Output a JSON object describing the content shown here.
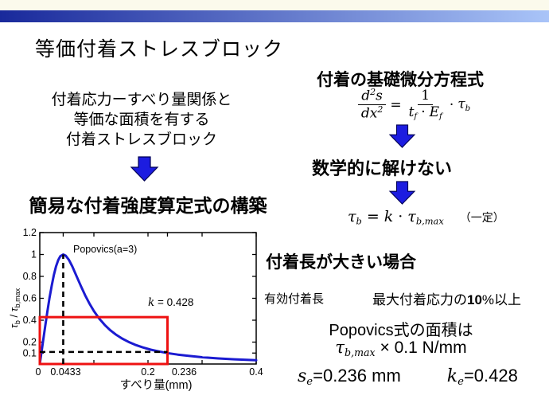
{
  "colors": {
    "strip": "#fbfaec",
    "bar_left": "#19299b",
    "bar_right": "#a9c4f8",
    "arrow_fill": "#1c1ce0",
    "arrow_outline": "#000055",
    "curve": "#1b1bd1",
    "stress_block": "#ee1111"
  },
  "slide": {
    "title": "等価付着ストレスブロック",
    "left": {
      "block_lines": [
        "付着応力ーすべり量関係と",
        "等価な面積を有する",
        "付着ストレスブロック"
      ],
      "goal": "簡易な付着強度算定式の構築"
    },
    "right": {
      "heading_diffeq": "付着の基礎微分方程式",
      "eq_diff": {
        "lhs_num_d": "d",
        "lhs_num_sup": "2",
        "lhs_num_var": "s",
        "lhs_den": "dx",
        "lhs_den_sup": "2",
        "equals": "=",
        "rhs_num": "1",
        "rhs_den_t": "t",
        "rhs_den_t_sub": "f",
        "rhs_den_dot": "·",
        "rhs_den_E": "E",
        "rhs_den_E_sub": "f",
        "mult": "·",
        "tau": "τ",
        "tau_sub": "b"
      },
      "unsolvable": "数学的に解けない",
      "eq_const": {
        "tau": "τ",
        "tau_sub": "b",
        "equals": "=",
        "k": "k",
        "dot": "·",
        "tau2": "τ",
        "tau2_sub": "b,max",
        "note": "（一定）"
      },
      "long_bond": "付着長が大きい場合",
      "effective_length": "有効付着長",
      "max_stress_pre": "最大付着応力の",
      "max_stress_num": "10",
      "max_stress_post": "%以上",
      "area_line": "Popovics式の面積は",
      "area_eq": {
        "tau": "τ",
        "sub": "b,max",
        "rest": " × 0.1 N/mm"
      },
      "se": {
        "base": "s",
        "sub": "e",
        "value": "=0.236 mm"
      },
      "ke": {
        "base": "k",
        "sub": "e",
        "value": "=0.428"
      }
    }
  },
  "chart_data": {
    "type": "line",
    "xlabel": "すべり量(mm)",
    "ylabel_parts": [
      {
        "t": "τ",
        "italic": true
      },
      {
        "t": "b",
        "sub": true
      },
      {
        "t": " / ",
        "italic": false
      },
      {
        "t": "τ",
        "italic": true
      },
      {
        "t": "b,max",
        "sub": true
      }
    ],
    "xlim": [
      0,
      0.4
    ],
    "ylim": [
      0,
      1.2
    ],
    "x_ticks": [
      {
        "v": 0,
        "label": "0",
        "label_dx": -2
      },
      {
        "v": 0.0433,
        "label": "0.0433",
        "label_dx": 3
      },
      {
        "v": 0.1
      },
      {
        "v": 0.2,
        "label": "0.2"
      },
      {
        "v": 0.236,
        "label": "0.236",
        "label_dx": 21
      },
      {
        "v": 0.3
      },
      {
        "v": 0.4,
        "label": "0.4"
      }
    ],
    "y_ticks": [
      {
        "v": 0.1,
        "label": "0.1"
      },
      {
        "v": 0.2,
        "label": "0.2"
      },
      {
        "v": 0.4,
        "label": "0.4"
      },
      {
        "v": 0.6,
        "label": "0.6"
      },
      {
        "v": 0.8,
        "label": "0.8"
      },
      {
        "v": 1,
        "label": "1"
      },
      {
        "v": 1.2,
        "label": "1.2"
      }
    ],
    "series": [
      {
        "name": "Popovics(a=3)",
        "color": "#1b1bd1",
        "points": [
          [
            0,
            0
          ],
          [
            0.002,
            0.069
          ],
          [
            0.006,
            0.208
          ],
          [
            0.01,
            0.344
          ],
          [
            0.014,
            0.477
          ],
          [
            0.018,
            0.602
          ],
          [
            0.022,
            0.715
          ],
          [
            0.026,
            0.813
          ],
          [
            0.03,
            0.891
          ],
          [
            0.034,
            0.948
          ],
          [
            0.038,
            0.984
          ],
          [
            0.0433,
            1.0
          ],
          [
            0.048,
            0.989
          ],
          [
            0.054,
            0.95
          ],
          [
            0.06,
            0.892
          ],
          [
            0.068,
            0.802
          ],
          [
            0.076,
            0.711
          ],
          [
            0.084,
            0.626
          ],
          [
            0.092,
            0.55
          ],
          [
            0.1,
            0.484
          ],
          [
            0.11,
            0.414
          ],
          [
            0.12,
            0.357
          ],
          [
            0.13,
            0.31
          ],
          [
            0.14,
            0.271
          ],
          [
            0.152,
            0.233
          ],
          [
            0.164,
            0.202
          ],
          [
            0.176,
            0.176
          ],
          [
            0.19,
            0.152
          ],
          [
            0.205,
            0.131
          ],
          [
            0.22,
            0.115
          ],
          [
            0.236,
            0.1
          ],
          [
            0.255,
            0.086
          ],
          [
            0.275,
            0.074
          ],
          [
            0.3,
            0.062
          ],
          [
            0.33,
            0.051
          ],
          [
            0.36,
            0.043
          ],
          [
            0.4,
            0.035
          ]
        ]
      }
    ],
    "stress_block": {
      "x0": 0,
      "x1": 0.236,
      "k": 0.428,
      "color": "#ee1111"
    },
    "dashed_vertical": {
      "x": 0.0433,
      "y_top": 1.0
    },
    "dashed_horizontal": {
      "y": 0.11,
      "x_right": 0.236
    },
    "annotations": [
      {
        "x": 92,
        "y": 37,
        "size": 12.5,
        "parts": [
          {
            "t": "Popovics(a=3)",
            "italic": false
          }
        ]
      },
      {
        "x": 186,
        "y": 104,
        "size": 13.5,
        "parts": [
          {
            "t": "k",
            "italic": true
          },
          {
            "t": " = 0.428",
            "italic": false
          }
        ]
      }
    ],
    "legend_position": "none",
    "grid": false
  }
}
